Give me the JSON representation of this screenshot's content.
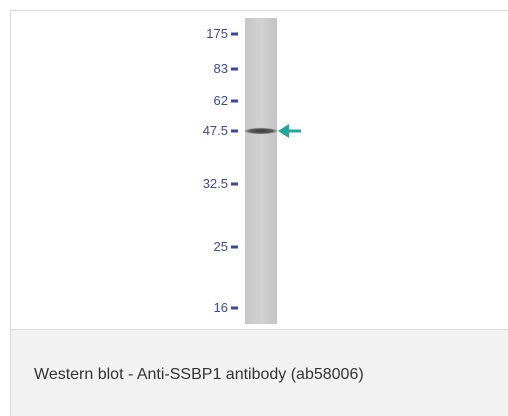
{
  "blot": {
    "markers": [
      {
        "label": "175",
        "kda": 175
      },
      {
        "label": "83",
        "kda": 83
      },
      {
        "label": "62",
        "kda": 62
      },
      {
        "label": "47.5",
        "kda": 47.5
      },
      {
        "label": "32.5",
        "kda": 32.5
      },
      {
        "label": "25",
        "kda": 25
      },
      {
        "label": "16",
        "kda": 16
      }
    ],
    "band_kda": 47.5,
    "marker_color": "#3a46a8",
    "arrow_color": "#1fa99a"
  },
  "caption": {
    "text": "Western blot - Anti-SSBP1 antibody (ab58006)"
  }
}
